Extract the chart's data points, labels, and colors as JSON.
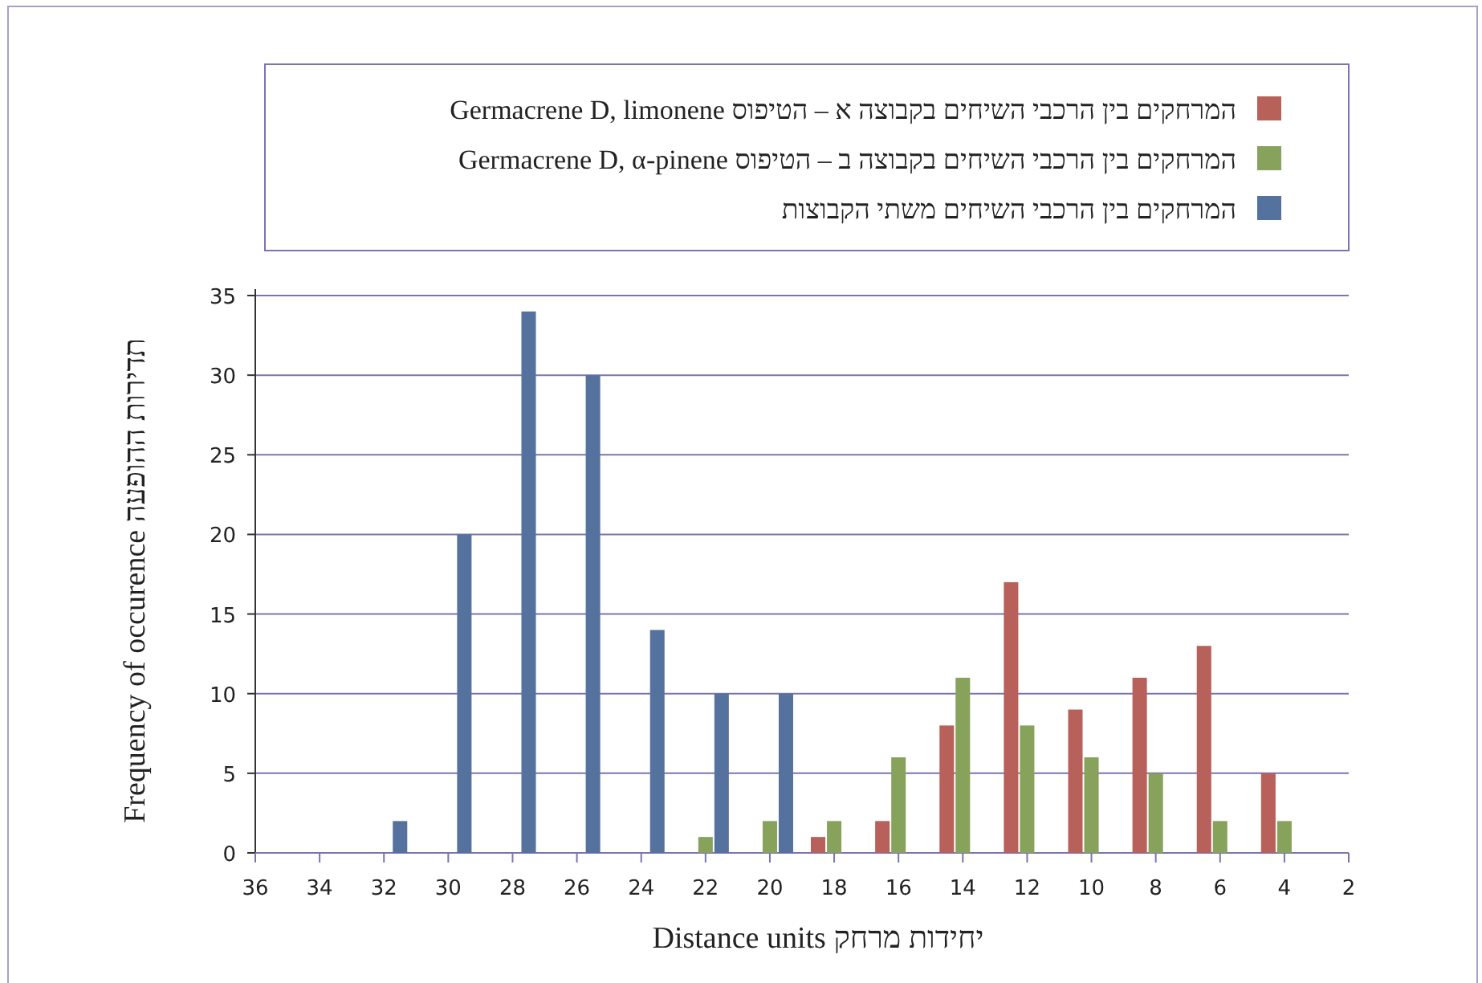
{
  "chart_data": {
    "type": "bar",
    "xlabel": "Distance units   יחידות מרחק",
    "ylabel": "Frequency of occurence   תדירות ההופעה",
    "xlim": [
      36,
      2
    ],
    "xticks": [
      36,
      34,
      32,
      30,
      28,
      26,
      24,
      22,
      20,
      18,
      16,
      14,
      12,
      10,
      8,
      6,
      4,
      2
    ],
    "ylim": [
      0,
      35
    ],
    "yticks": [
      0,
      5,
      10,
      15,
      20,
      25,
      30,
      35
    ],
    "grid": "y",
    "legend": "top",
    "series": [
      {
        "name": "המרחקים בין הרכבי השיחים בקבוצה א – הטיפוס Germacrene D, limonene",
        "color": "#b8605a",
        "x": [
          18.5,
          16.5,
          14.5,
          12.5,
          10.5,
          8.5,
          6.5,
          4.5
        ],
        "values": [
          1,
          2,
          8,
          17,
          9,
          11,
          13,
          5
        ]
      },
      {
        "name": "המרחקים בין הרכבי השיחים בקבוצה ב – הטיפוס Germacrene D, α-pinene",
        "color": "#86a25b",
        "x": [
          22,
          20,
          18,
          16,
          14,
          12,
          10,
          8,
          6,
          4
        ],
        "values": [
          1,
          2,
          2,
          6,
          11,
          8,
          6,
          5,
          2,
          2
        ]
      },
      {
        "name": "המרחקים בין הרכבי השיחים משתי הקבוצות",
        "color": "#55729f",
        "x": [
          31.5,
          29.5,
          27.5,
          25.5,
          23.5,
          21.5,
          19.5
        ],
        "values": [
          2,
          20,
          34,
          30,
          14,
          10,
          10
        ]
      }
    ]
  }
}
